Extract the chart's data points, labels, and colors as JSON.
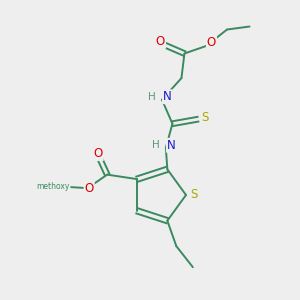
{
  "bg_color": "#eeeeee",
  "atom_colors": {
    "C": "#3a8a60",
    "H": "#5a9a70",
    "N": "#1a1acd",
    "O": "#dd0000",
    "S": "#aaaa00"
  },
  "bond_color": "#3a8a60",
  "figsize": [
    3.0,
    3.0
  ],
  "dpi": 100
}
